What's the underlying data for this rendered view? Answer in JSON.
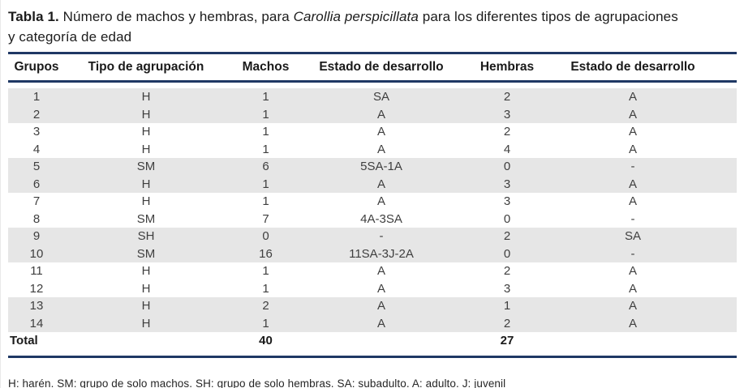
{
  "title": {
    "bold": "Tabla 1.",
    "normal1": "Número de machos y hembras, para",
    "italic": "Carollia perspicillata",
    "normal2": "para los diferentes tipos de agrupaciones",
    "line2": "y categoría de edad"
  },
  "table": {
    "columns": [
      "Grupos",
      "Tipo de agrupación",
      "Machos",
      "Estado de desarrollo",
      "Hembras",
      "Estado de desarrollo"
    ],
    "rows": [
      [
        "1",
        "H",
        "1",
        "SA",
        "2",
        "A"
      ],
      [
        "2",
        "H",
        "1",
        "A",
        "3",
        "A"
      ],
      [
        "3",
        "H",
        "1",
        "A",
        "2",
        "A"
      ],
      [
        "4",
        "H",
        "1",
        "A",
        "4",
        "A"
      ],
      [
        "5",
        "SM",
        "6",
        "5SA-1A",
        "0",
        "-"
      ],
      [
        "6",
        "H",
        "1",
        "A",
        "3",
        "A"
      ],
      [
        "7",
        "H",
        "1",
        "A",
        "3",
        "A"
      ],
      [
        "8",
        "SM",
        "7",
        "4A-3SA",
        "0",
        "-"
      ],
      [
        "9",
        "SH",
        "0",
        "-",
        "2",
        "SA"
      ],
      [
        "10",
        "SM",
        "16",
        "11SA-3J-2A",
        "0",
        "-"
      ],
      [
        "11",
        "H",
        "1",
        "A",
        "2",
        "A"
      ],
      [
        "12",
        "H",
        "1",
        "A",
        "3",
        "A"
      ],
      [
        "13",
        "H",
        "2",
        "A",
        "1",
        "A"
      ],
      [
        "14",
        "H",
        "1",
        "A",
        "2",
        "A"
      ]
    ],
    "total_row": {
      "label": "Total",
      "machos_total": "40",
      "hembras_total": "27"
    }
  },
  "footnote": "H: harén. SM: grupo de solo machos. SH: grupo de solo hembras. SA: subadulto. A: adulto. J: juvenil",
  "colors": {
    "rule": "#1f3864",
    "row_band": "#e6e6e6",
    "text_body": "#3f3f3f",
    "text_heading": "#1a1a1a"
  }
}
